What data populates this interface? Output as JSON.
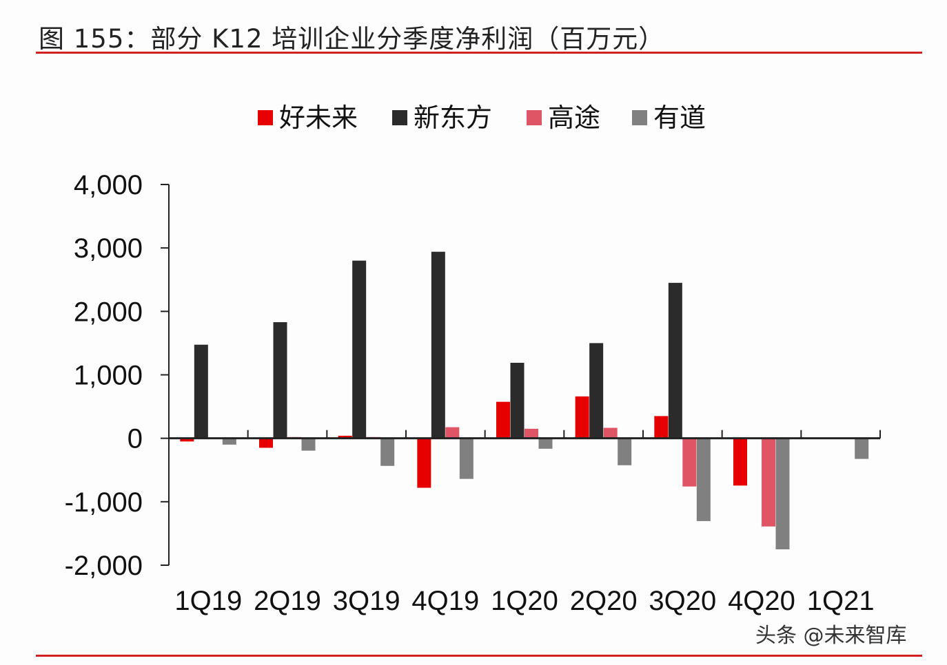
{
  "title": "图 155：部分 K12 培训企业分季度净利润（百万元）",
  "watermark": "头条 @未来智库",
  "chart_data": {
    "type": "bar",
    "title": "图 155：部分 K12 培训企业分季度净利润（百万元）",
    "xlabel": "",
    "ylabel": "",
    "ylim": [
      -2000,
      4000
    ],
    "yticks": [
      4000,
      3000,
      2000,
      1000,
      0,
      -1000,
      -2000
    ],
    "ytick_labels": [
      "4,000",
      "3,000",
      "2,000",
      "1,000",
      "0",
      "-1,000",
      "-2,000"
    ],
    "grid": false,
    "legend": "top",
    "categories": [
      "1Q19",
      "2Q19",
      "3Q19",
      "4Q19",
      "1Q20",
      "2Q20",
      "3Q20",
      "4Q20",
      "1Q21"
    ],
    "series": [
      {
        "name": "好未来",
        "color": "#e60000",
        "values": [
          -50,
          -150,
          40,
          -780,
          575,
          660,
          350,
          -745,
          null
        ]
      },
      {
        "name": "新东方",
        "color": "#2b2b2b",
        "values": [
          1475,
          1830,
          2800,
          2940,
          1190,
          1500,
          2450,
          null,
          null
        ]
      },
      {
        "name": "高途",
        "color": "#e05565",
        "values": [
          10,
          20,
          20,
          175,
          150,
          165,
          -760,
          -1390,
          null
        ]
      },
      {
        "name": "有道",
        "color": "#808080",
        "values": [
          -100,
          -195,
          -435,
          -640,
          -165,
          -425,
          -1305,
          -1750,
          -325
        ]
      }
    ]
  }
}
